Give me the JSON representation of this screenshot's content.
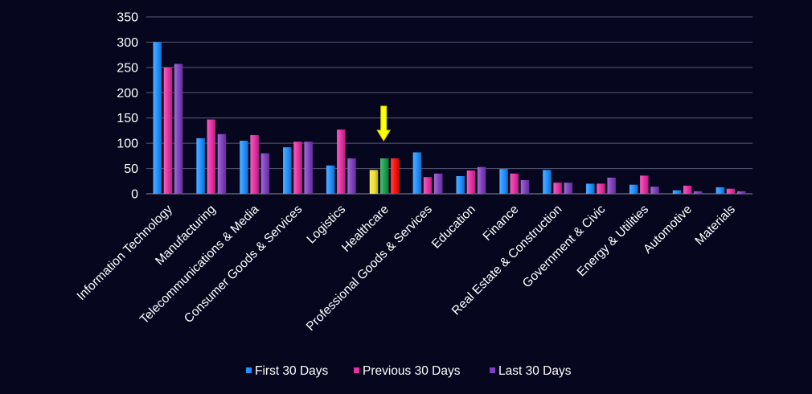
{
  "chart_data": {
    "type": "bar",
    "ylim": [
      0,
      350
    ],
    "yticks": [
      0,
      50,
      100,
      150,
      200,
      250,
      300,
      350
    ],
    "ytick_labels": [
      "0",
      "50",
      "100",
      "150",
      "200",
      "250",
      "300",
      "350"
    ],
    "grid": true,
    "legend_position": "bottom",
    "categories": [
      "Information Technology",
      "Manufacturing",
      "Telecommunications & Media",
      "Consumer Goods &  Services",
      "Logistics",
      "Healthcare",
      "Professional Goods & Services",
      "Education",
      "Finance",
      "Real Estate & Construction",
      "Government & Civic",
      "Energy & Utilities",
      "Automotive",
      "Materials"
    ],
    "series": [
      {
        "name": "First 30 Days",
        "color": "#1e90ff",
        "values": [
          300,
          110,
          105,
          92,
          56,
          47,
          82,
          35,
          49,
          47,
          20,
          18,
          7,
          13
        ]
      },
      {
        "name": "Previous 30 Days",
        "color": "#e62fa3",
        "values": [
          250,
          147,
          116,
          103,
          127,
          70,
          33,
          46,
          40,
          22,
          20,
          36,
          16,
          10
        ]
      },
      {
        "name": "Last 30 Days",
        "color": "#7f3fbf",
        "values": [
          257,
          118,
          80,
          103,
          70,
          70,
          40,
          53,
          27,
          22,
          32,
          14,
          5,
          5
        ]
      }
    ],
    "highlight": {
      "category": "Healthcare",
      "colors": [
        "#f2e330",
        "#1aa04a",
        "#ff0d0d"
      ],
      "marker": "arrow-down",
      "marker_color": "#ffff00"
    }
  }
}
